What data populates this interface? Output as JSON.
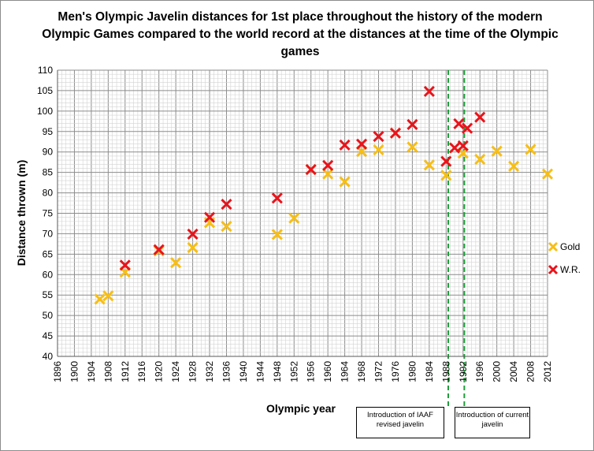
{
  "chart_data": {
    "type": "scatter",
    "title": "Men's Olympic Javelin distances for 1st place throughout the history of the modern Olympic Games compared to the world record at the distances at the time of the Olympic games",
    "xlabel": "Olympic year",
    "ylabel": "Distance thrown (m)",
    "xlim": [
      1896,
      2012
    ],
    "ylim": [
      40,
      110
    ],
    "x_ticks": [
      "1896",
      "1900",
      "1904",
      "1908",
      "1912",
      "1916",
      "1920",
      "1924",
      "1928",
      "1932",
      "1936",
      "1940",
      "1944",
      "1948",
      "1952",
      "1956",
      "1960",
      "1964",
      "1968",
      "1972",
      "1976",
      "1980",
      "1984",
      "1988",
      "1992",
      "1996",
      "2000",
      "2004",
      "2008",
      "2012"
    ],
    "y_ticks": [
      "40",
      "45",
      "50",
      "55",
      "60",
      "65",
      "70",
      "75",
      "80",
      "85",
      "90",
      "95",
      "100",
      "105",
      "110"
    ],
    "grid": true,
    "legend_position": "right",
    "series": [
      {
        "name": "Gold",
        "color": "#f7be15",
        "marker": "x",
        "points": [
          [
            1906,
            54.0
          ],
          [
            1908,
            54.8
          ],
          [
            1912,
            60.6
          ],
          [
            1920,
            65.8
          ],
          [
            1924,
            62.9
          ],
          [
            1928,
            66.6
          ],
          [
            1932,
            72.7
          ],
          [
            1936,
            71.8
          ],
          [
            1948,
            69.8
          ],
          [
            1952,
            73.8
          ],
          [
            1956,
            85.7
          ],
          [
            1960,
            84.6
          ],
          [
            1964,
            82.7
          ],
          [
            1968,
            90.1
          ],
          [
            1972,
            90.5
          ],
          [
            1976,
            94.6
          ],
          [
            1980,
            91.2
          ],
          [
            1984,
            86.8
          ],
          [
            1988,
            84.3
          ],
          [
            1992,
            89.7
          ],
          [
            1996,
            88.2
          ],
          [
            2000,
            90.2
          ],
          [
            2004,
            86.5
          ],
          [
            2008,
            90.6
          ],
          [
            2012,
            84.6
          ]
        ]
      },
      {
        "name": "W.R.",
        "color": "#e8141b",
        "marker": "x",
        "points": [
          [
            1912,
            62.3
          ],
          [
            1920,
            66.1
          ],
          [
            1928,
            69.9
          ],
          [
            1932,
            74.0
          ],
          [
            1936,
            77.2
          ],
          [
            1948,
            78.7
          ],
          [
            1956,
            85.7
          ],
          [
            1960,
            86.7
          ],
          [
            1964,
            91.7
          ],
          [
            1968,
            91.9
          ],
          [
            1972,
            93.8
          ],
          [
            1976,
            94.6
          ],
          [
            1980,
            96.7
          ],
          [
            1984,
            104.8
          ],
          [
            1988,
            87.7
          ],
          [
            1990,
            91.0
          ],
          [
            1991,
            96.9
          ],
          [
            1992,
            91.5
          ],
          [
            1993,
            95.8
          ],
          [
            1996,
            98.5
          ]
        ]
      }
    ],
    "reference_lines": [
      {
        "x": 1988.5,
        "label": "Introduction of IAAF revised javelin",
        "color": "#1f9e3a"
      },
      {
        "x": 1992.3,
        "label": "Introduction of current javelin",
        "color": "#1f9e3a"
      }
    ]
  }
}
